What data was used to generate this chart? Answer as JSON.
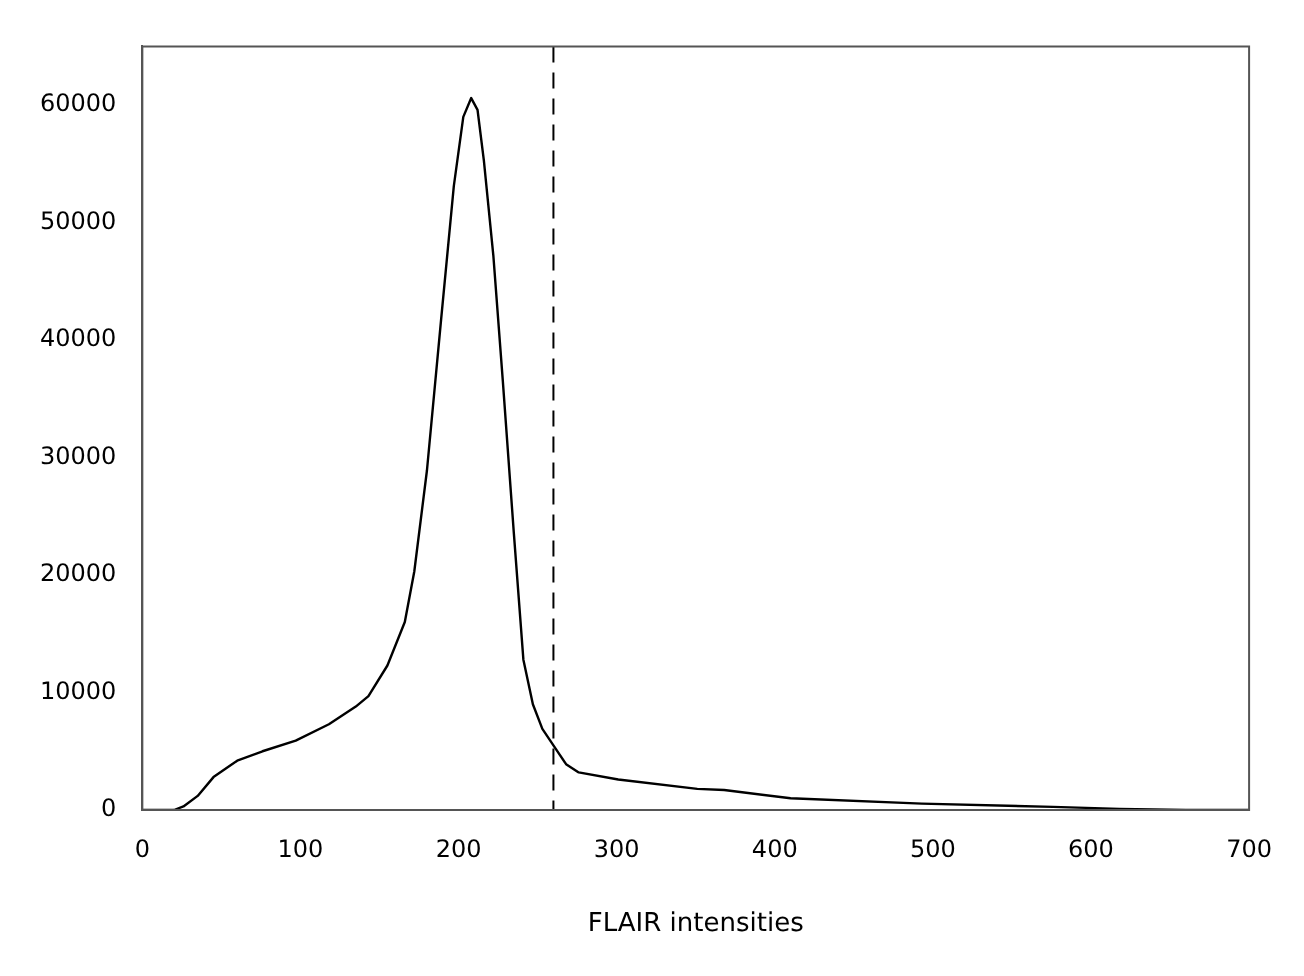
{
  "chart_data": {
    "type": "line",
    "xlabel": "FLAIR intensities",
    "x": [
      0,
      20,
      26,
      35,
      45,
      60,
      76,
      97,
      118,
      135,
      143,
      155,
      166,
      172,
      180,
      189,
      197,
      203,
      208,
      212,
      216,
      222,
      228,
      235,
      241,
      247,
      253,
      260,
      268,
      276,
      301,
      351,
      368,
      410,
      493,
      576,
      618,
      660,
      700
    ],
    "series": [
      {
        "color": "#000000",
        "values": [
          0,
          0,
          300,
          1200,
          2800,
          4200,
          5000,
          5900,
          7300,
          8800,
          9700,
          12300,
          16000,
          20300,
          28900,
          41800,
          53100,
          59000,
          60600,
          59600,
          55300,
          47200,
          36500,
          23500,
          12800,
          9000,
          6900,
          5500,
          3900,
          3200,
          2600,
          1800,
          1700,
          1000,
          540,
          270,
          100,
          0,
          0
        ]
      }
    ],
    "xlim": [
      0,
      700
    ],
    "xticks": [
      0,
      100,
      200,
      300,
      400,
      500,
      600,
      700
    ],
    "ylim": [
      0,
      65000
    ],
    "yticks": [
      0,
      10000,
      20000,
      30000,
      40000,
      50000,
      60000
    ],
    "ref_lines": [
      {
        "axis": "x",
        "value": 260,
        "line_style": "dashed",
        "color": "#000000"
      }
    ],
    "grid": false,
    "legend": false,
    "marker": "none",
    "line_style": "solid"
  }
}
